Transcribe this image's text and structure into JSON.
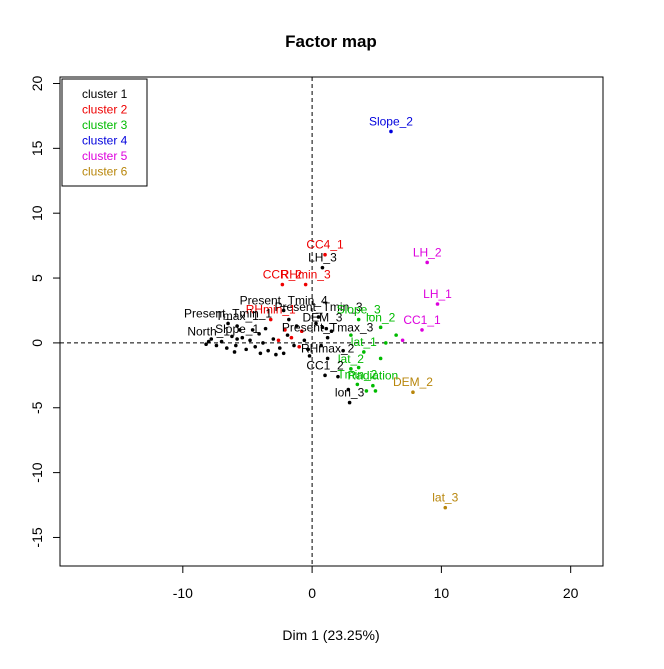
{
  "chart_data": {
    "type": "scatter",
    "title": "Factor map",
    "xlabel": "Dim 1 (23.25%)",
    "ylabel": "",
    "xlim": [
      -19.5,
      22.5
    ],
    "ylim": [
      -17.2,
      20.5
    ],
    "x_ticks": [
      -10,
      0,
      10,
      20
    ],
    "y_ticks": [
      -15,
      -10,
      -5,
      0,
      5,
      10,
      15,
      20
    ],
    "grid": false,
    "reference_lines": {
      "x": 0,
      "y": 0
    },
    "legend_position": "top-left",
    "legend": [
      {
        "label": "cluster 1",
        "color": "#000000"
      },
      {
        "label": "cluster 2",
        "color": "#ee0000"
      },
      {
        "label": "cluster 3",
        "color": "#00bb00"
      },
      {
        "label": "cluster 4",
        "color": "#0000dd"
      },
      {
        "label": "cluster 5",
        "color": "#dd00dd"
      },
      {
        "label": "cluster 6",
        "color": "#b8860b"
      }
    ],
    "labeled_points": [
      {
        "label": "Slope_2",
        "x": 6.1,
        "y": 16.3,
        "cluster": 4
      },
      {
        "label": "LH_2",
        "x": 8.9,
        "y": 6.2,
        "cluster": 5
      },
      {
        "label": "LH_1",
        "x": 9.7,
        "y": 3.0,
        "cluster": 5
      },
      {
        "label": "CC1_1",
        "x": 8.5,
        "y": 1.0,
        "cluster": 5
      },
      {
        "label": "CC4_1",
        "x": 1.0,
        "y": 6.8,
        "cluster": 2
      },
      {
        "label": "CCR_2",
        "x": -2.3,
        "y": 4.5,
        "cluster": 2
      },
      {
        "label": "RHmin_3",
        "x": -0.5,
        "y": 4.5,
        "cluster": 2
      },
      {
        "label": "LH_3",
        "x": 0.8,
        "y": 5.8,
        "cluster": 1
      },
      {
        "label": "Present_Tmin_4",
        "x": -2.2,
        "y": 2.5,
        "cluster": 1
      },
      {
        "label": "Present_Tmin_3",
        "x": 0.5,
        "y": 2.0,
        "cluster": 1
      },
      {
        "label": "DEM_3",
        "x": 0.8,
        "y": 1.2,
        "cluster": 1
      },
      {
        "label": "Slope_3",
        "x": 3.6,
        "y": 1.8,
        "cluster": 3
      },
      {
        "label": "lon_2",
        "x": 5.3,
        "y": 1.2,
        "cluster": 3
      },
      {
        "label": "Present_Tmax_3",
        "x": 1.2,
        "y": 0.4,
        "cluster": 1
      },
      {
        "label": "lat_1",
        "x": 4.0,
        "y": -0.7,
        "cluster": 3
      },
      {
        "label": "RHmax_2",
        "x": 1.2,
        "y": -1.2,
        "cluster": 1
      },
      {
        "label": "lat_2",
        "x": 3.0,
        "y": -2.0,
        "cluster": 3
      },
      {
        "label": "CC1_2",
        "x": 1.0,
        "y": -2.5,
        "cluster": 1
      },
      {
        "label": "Tmin_2",
        "x": 3.5,
        "y": -3.2,
        "cluster": 3
      },
      {
        "label": "Radiation",
        "x": 4.7,
        "y": -3.3,
        "cluster": 3
      },
      {
        "label": "DEM_2",
        "x": 7.8,
        "y": -3.8,
        "cluster": 6
      },
      {
        "label": "lon_3",
        "x": 2.9,
        "y": -4.6,
        "cluster": 1
      },
      {
        "label": "lat_3",
        "x": 10.3,
        "y": -12.7,
        "cluster": 6
      },
      {
        "label": "RHmin_1",
        "x": -3.2,
        "y": 1.8,
        "cluster": 2
      },
      {
        "label": "Present_Tmin_1",
        "x": -6.5,
        "y": 1.5,
        "cluster": 1
      },
      {
        "label": "Tmax_1",
        "x": -5.8,
        "y": 1.3,
        "cluster": 1
      },
      {
        "label": "Slope_1",
        "x": -5.8,
        "y": 0.3,
        "cluster": 1
      },
      {
        "label": "North_1",
        "x": -8.0,
        "y": 0.1,
        "cluster": 1
      }
    ],
    "unlabeled_points": [
      {
        "x": 5.7,
        "y": 0.0,
        "cluster": 3
      },
      {
        "x": 5.3,
        "y": -1.2,
        "cluster": 3
      },
      {
        "x": 4.2,
        "y": -3.7,
        "cluster": 3
      },
      {
        "x": 4.9,
        "y": -3.7,
        "cluster": 3
      },
      {
        "x": 3.6,
        "y": -1.9,
        "cluster": 3
      },
      {
        "x": 6.5,
        "y": 0.6,
        "cluster": 3
      },
      {
        "x": 3.0,
        "y": 0.6,
        "cluster": 3
      },
      {
        "x": 7.0,
        "y": 0.2,
        "cluster": 5
      },
      {
        "x": -2.1,
        "y": 1.0,
        "cluster": 2
      },
      {
        "x": -1.6,
        "y": 0.4,
        "cluster": 2
      },
      {
        "x": -1.0,
        "y": -0.3,
        "cluster": 2
      },
      {
        "x": -2.6,
        "y": 0.2,
        "cluster": 2
      },
      {
        "x": -0.8,
        "y": 0.9,
        "cluster": 2
      },
      {
        "x": 2.4,
        "y": -0.6,
        "cluster": 1
      },
      {
        "x": 1.5,
        "y": 0.9,
        "cluster": 1
      },
      {
        "x": 2.0,
        "y": -2.6,
        "cluster": 1
      },
      {
        "x": 2.8,
        "y": -3.6,
        "cluster": 1
      },
      {
        "x": 0.7,
        "y": -0.2,
        "cluster": 1
      },
      {
        "x": 1.1,
        "y": 1.1,
        "cluster": 1
      },
      {
        "x": -0.3,
        "y": -0.5,
        "cluster": 1
      },
      {
        "x": 0.3,
        "y": 1.5,
        "cluster": 1
      },
      {
        "x": -0.6,
        "y": 0.2,
        "cluster": 1
      },
      {
        "x": -1.4,
        "y": -0.2,
        "cluster": 1
      },
      {
        "x": -1.9,
        "y": 0.6,
        "cluster": 1
      },
      {
        "x": -2.5,
        "y": -0.4,
        "cluster": 1
      },
      {
        "x": -3.0,
        "y": 0.3,
        "cluster": 1
      },
      {
        "x": -3.4,
        "y": -0.6,
        "cluster": 1
      },
      {
        "x": -3.8,
        "y": 0.0,
        "cluster": 1
      },
      {
        "x": -4.1,
        "y": 0.7,
        "cluster": 1
      },
      {
        "x": -4.4,
        "y": -0.3,
        "cluster": 1
      },
      {
        "x": -4.8,
        "y": 0.2,
        "cluster": 1
      },
      {
        "x": -5.1,
        "y": -0.5,
        "cluster": 1
      },
      {
        "x": -5.4,
        "y": 0.4,
        "cluster": 1
      },
      {
        "x": -5.9,
        "y": -0.2,
        "cluster": 1
      },
      {
        "x": -6.2,
        "y": 0.5,
        "cluster": 1
      },
      {
        "x": -6.6,
        "y": -0.4,
        "cluster": 1
      },
      {
        "x": -7.0,
        "y": 0.1,
        "cluster": 1
      },
      {
        "x": -7.4,
        "y": -0.2,
        "cluster": 1
      },
      {
        "x": -7.8,
        "y": 0.3,
        "cluster": 1
      },
      {
        "x": -8.2,
        "y": -0.1,
        "cluster": 1
      },
      {
        "x": -2.8,
        "y": -0.9,
        "cluster": 1
      },
      {
        "x": -3.6,
        "y": 1.1,
        "cluster": 1
      },
      {
        "x": -4.6,
        "y": 1.0,
        "cluster": 1
      },
      {
        "x": -5.6,
        "y": 1.0,
        "cluster": 1
      },
      {
        "x": -1.2,
        "y": 1.3,
        "cluster": 1
      },
      {
        "x": -0.2,
        "y": -1.0,
        "cluster": 1
      },
      {
        "x": -2.2,
        "y": -0.8,
        "cluster": 1
      },
      {
        "x": -4.0,
        "y": -0.8,
        "cluster": 1
      },
      {
        "x": -6.0,
        "y": -0.7,
        "cluster": 1
      },
      {
        "x": -1.8,
        "y": 1.8,
        "cluster": 1
      }
    ]
  }
}
